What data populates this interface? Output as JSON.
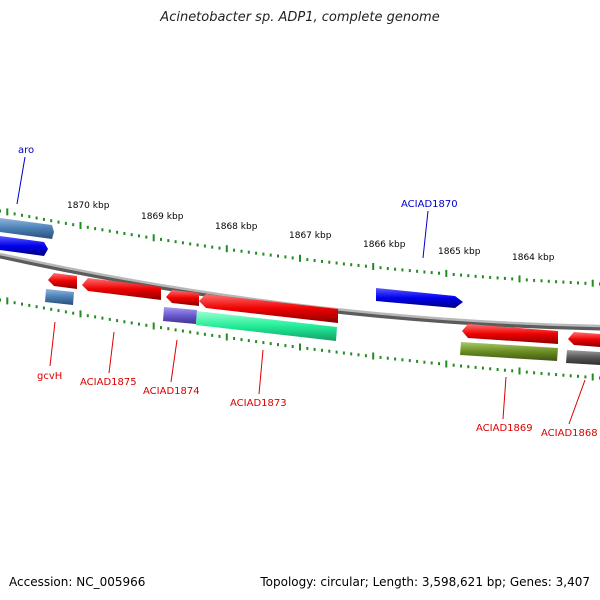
{
  "header": {
    "title": "Acinetobacter sp. ADP1, complete genome"
  },
  "footer": {
    "accession": "Accession: NC_005966",
    "topology": "Topology: circular; Length: 3,598,621 bp; Genes: 3,407"
  },
  "scale_labels": [
    "1870 kbp",
    "1869 kbp",
    "1868 kbp",
    "1867 kbp",
    "1866 kbp",
    "1865 kbp",
    "1864 kbp"
  ],
  "gene_labels": {
    "aro": "aro",
    "aciad1870": "ACIAD1870",
    "gcvh": "gcvH",
    "aciad1875": "ACIAD1875",
    "aciad1874": "ACIAD1874",
    "aciad1873": "ACIAD1873",
    "aciad1869": "ACIAD1869",
    "aciad1868": "ACIAD1868"
  },
  "colors": {
    "forward_label": "#0000cc",
    "reverse_label": "#dd0000",
    "backbone": "#808080",
    "tick": "#228b22",
    "blue_feature": "#0000ee",
    "red_feature": "#ee0000",
    "steel_feature": "#4a7fb5",
    "green_feature": "#22ee99",
    "purple_feature": "#6a5acd",
    "olive_feature": "#6b8e23",
    "gray_feature": "#555555"
  }
}
